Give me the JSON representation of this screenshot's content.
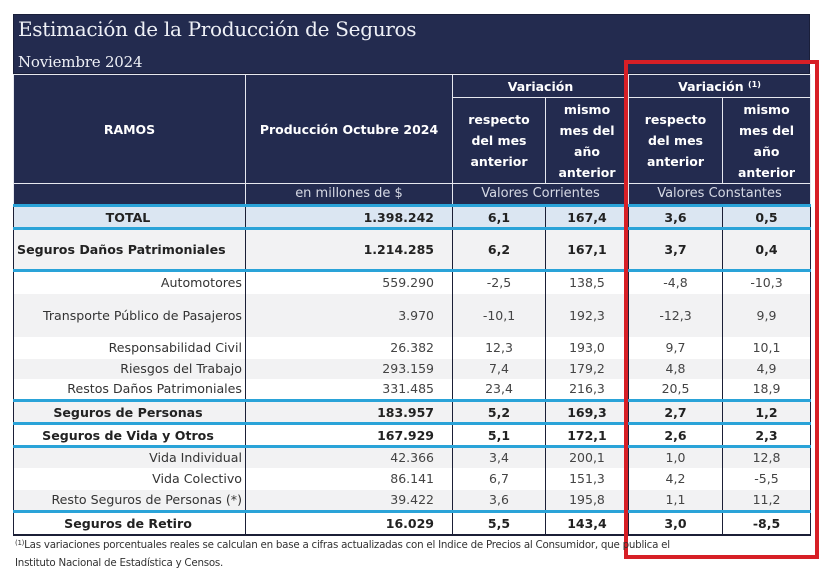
{
  "header": {
    "title": "Estimación de la Producción de Seguros",
    "subtitle": "Noviembre 2024"
  },
  "columns": {
    "ramos": "RAMOS",
    "produccion": "Producción Octubre 2024",
    "variacion_corrientes": "Variación",
    "variacion_constantes": "Variación",
    "variacion_constantes_note": "(1)",
    "respecto_mes_anterior": [
      "respecto",
      "del mes",
      "anterior"
    ],
    "mismo_mes_ano_anterior": [
      "mismo",
      "mes del",
      "año",
      "anterior"
    ],
    "unit_produccion": "en millones de $",
    "unit_corrientes": "Valores Corrientes",
    "unit_constantes": "Valores Constantes"
  },
  "rows": [
    {
      "name": "TOTAL",
      "produccion": "1.398.242",
      "corr_mes": "6,1",
      "corr_ano": "167,4",
      "const_mes": "3,6",
      "const_ano": "0,5"
    },
    {
      "name": "Seguros Daños Patrimoniales",
      "produccion": "1.214.285",
      "corr_mes": "6,2",
      "corr_ano": "167,1",
      "const_mes": "3,7",
      "const_ano": "0,4"
    },
    {
      "name": "Automotores",
      "produccion": "559.290",
      "corr_mes": "-2,5",
      "corr_ano": "138,5",
      "const_mes": "-4,8",
      "const_ano": "-10,3"
    },
    {
      "name": "Transporte Público de Pasajeros",
      "produccion": "3.970",
      "corr_mes": "-10,1",
      "corr_ano": "192,3",
      "const_mes": "-12,3",
      "const_ano": "9,9"
    },
    {
      "name": "Responsabilidad Civil",
      "produccion": "26.382",
      "corr_mes": "12,3",
      "corr_ano": "193,0",
      "const_mes": "9,7",
      "const_ano": "10,1"
    },
    {
      "name": "Riesgos del Trabajo",
      "produccion": "293.159",
      "corr_mes": "7,4",
      "corr_ano": "179,2",
      "const_mes": "4,8",
      "const_ano": "4,9"
    },
    {
      "name": "Restos Daños Patrimoniales",
      "produccion": "331.485",
      "corr_mes": "23,4",
      "corr_ano": "216,3",
      "const_mes": "20,5",
      "const_ano": "18,9"
    },
    {
      "name": "Seguros de Personas",
      "produccion": "183.957",
      "corr_mes": "5,2",
      "corr_ano": "169,3",
      "const_mes": "2,7",
      "const_ano": "1,2"
    },
    {
      "name": "Seguros de Vida y Otros",
      "produccion": "167.929",
      "corr_mes": "5,1",
      "corr_ano": "172,1",
      "const_mes": "2,6",
      "const_ano": "2,3"
    },
    {
      "name": "Vida Individual",
      "produccion": "42.366",
      "corr_mes": "3,4",
      "corr_ano": "200,1",
      "const_mes": "1,0",
      "const_ano": "12,8"
    },
    {
      "name": "Vida Colectivo",
      "produccion": "86.141",
      "corr_mes": "6,7",
      "corr_ano": "151,3",
      "const_mes": "4,2",
      "const_ano": "-5,5"
    },
    {
      "name": "Resto Seguros de Personas (*)",
      "produccion": "39.422",
      "corr_mes": "3,6",
      "corr_ano": "195,8",
      "const_mes": "1,1",
      "const_ano": "11,2"
    },
    {
      "name": "Seguros de Retiro",
      "produccion": "16.029",
      "corr_mes": "5,5",
      "corr_ano": "143,4",
      "const_mes": "3,0",
      "const_ano": "-8,5"
    }
  ],
  "footnote": {
    "marker": "(1)",
    "line1": "Las variaciones porcentuales reales se calculan en base a cifras actualizadas con  el Indice de Precios al Consumidor, que publica el",
    "line2": "Instituto Nacional de Estadística y  Censos."
  },
  "colors": {
    "header_bg": "#232b4f",
    "separator_blue": "#2aa3d8",
    "total_bg": "#dbe6f2",
    "highlight_red": "#d71f26"
  }
}
